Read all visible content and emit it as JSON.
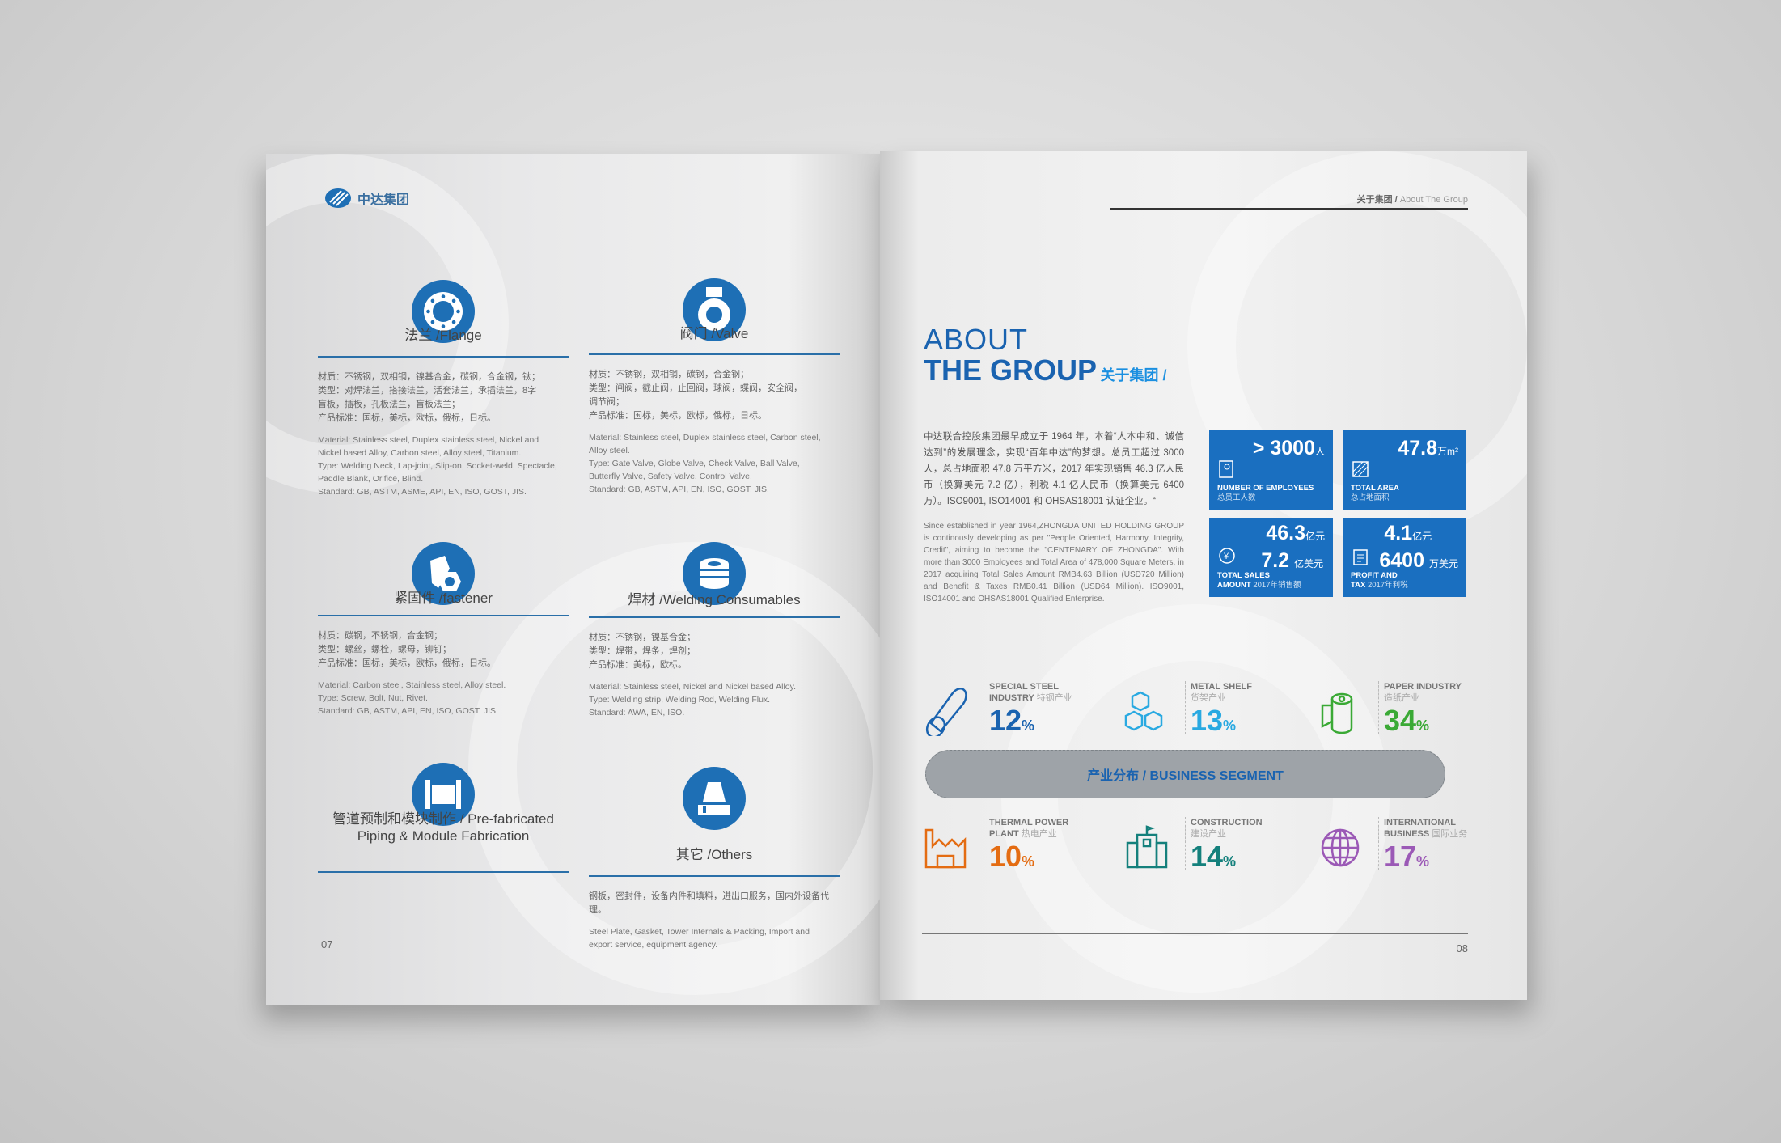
{
  "left_page": {
    "logo_text": "中达集团",
    "page_number": "07",
    "products": [
      {
        "icon": "flange-icon",
        "title": "法兰 /Flange",
        "cn": [
          "材质：不锈钢，双相钢，镍基合金，碳钢，合金钢，钛；",
          "类型：对焊法兰，搭接法兰，活套法兰，承插法兰，8字",
          "盲板，插板，孔板法兰，盲板法兰；",
          "产品标准：国标，美标，欧标，俄标，日标。"
        ],
        "en": [
          "Material: Stainless steel, Duplex stainless steel, Nickel and Nickel based Alloy, Carbon steel, Alloy steel, Titanium.",
          "Type: Welding Neck, Lap-joint, Slip-on, Socket-weld, Spectacle, Paddle Blank, Orifice, Blind.",
          "Standard: GB, ASTM, ASME, API, EN, ISO, GOST, JIS."
        ]
      },
      {
        "icon": "valve-icon",
        "title": "阀门 /Valve",
        "cn": [
          "材质：不锈钢，双相钢，碳钢，合金钢；",
          "类型：闸阀，截止阀，止回阀，球阀，蝶阀，安全阀，",
          "调节阀；",
          "产品标准：国标，美标，欧标，俄标，日标。"
        ],
        "en": [
          "Material: Stainless steel, Duplex stainless steel, Carbon steel, Alloy steel.",
          "Type: Gate Valve, Globe Valve, Check Valve, Ball Valve, Butterfly Valve, Safety Valve, Control Valve.",
          "Standard: GB, ASTM, API, EN, ISO, GOST, JIS."
        ]
      },
      {
        "icon": "fastener-icon",
        "title": "紧固件 /fastener",
        "cn": [
          "材质：碳钢，不锈钢，合金钢；",
          "类型：螺丝，螺栓，螺母，铆钉；",
          "产品标准：国标，美标，欧标，俄标，日标。"
        ],
        "en": [
          "Material: Carbon steel, Stainless steel, Alloy steel.",
          "Type: Screw, Bolt, Nut, Rivet.",
          "Standard: GB, ASTM, API, EN, ISO, GOST, JIS."
        ]
      },
      {
        "icon": "welding-coil-icon",
        "title": "焊材 /Welding Consumables",
        "cn": [
          "材质：不锈钢，镍基合金；",
          "类型：焊带，焊条，焊剂；",
          "产品标准：美标，欧标。"
        ],
        "en": [
          "Material: Stainless steel, Nickel and Nickel based Alloy.",
          "Type: Welding strip, Welding Rod, Welding Flux.",
          "Standard: AWA, EN, ISO."
        ]
      },
      {
        "icon": "pipe-spool-icon",
        "title": "管道预制和模块制作 / Pre-fabricated Piping & Module Fabrication",
        "cn": [],
        "en": []
      },
      {
        "icon": "plate-icon",
        "title": "其它 /Others",
        "cn": [
          "钢板，密封件，设备内件和填料，进出口服务，国内外设备代理。"
        ],
        "en": [
          "Steel Plate, Gasket, Tower Internals & Packing, Import and export service, equipment agency."
        ]
      }
    ]
  },
  "right_page": {
    "header_cn": "关于集团 /",
    "header_en": "About The Group",
    "title_line1": "ABOUT",
    "title_line2": "THE GROUP",
    "title_cn": "关于集团 /",
    "intro_cn": "中达联合控股集团最早成立于 1964 年，本着“人本中和、诚信达到”的发展理念，实现“百年中达”的梦想。总员工超过 3000 人，总占地面积 47.8 万平方米，2017 年实现销售 46.3 亿人民币（换算美元 7.2 亿），利税 4.1 亿人民币（换算美元 6400 万）。ISO9001, ISO14001 和 OHSAS18001 认证企业。“",
    "intro_en": "Since established in year 1964,ZHONGDA UNITED HOLDING GROUP is continously developing as per \"People Oriented, Harmony, Integrity, Credit\", aiming to become the \"CENTENARY OF ZHONGDA\". With more than 3000 Employees and Total Area of 478,000 Square Meters, in 2017 acquiring Total Sales Amount RMB4.63 Billion (USD720 Million) and Benefit & Taxes RMB0.41 Billion (USD64 Million). ISO9001, ISO14001 and OHSAS18001 Qualified Enterprise.",
    "stats": [
      {
        "value": "> 3000",
        "unit": "人",
        "label": "NUMBER OF EMPLOYEES",
        "label_cn": "总员工人数",
        "icon": "employee-id-icon"
      },
      {
        "value": "47.8",
        "unit": "万m²",
        "label": "TOTAL AREA",
        "label_cn": "总占地面积",
        "icon": "area-icon"
      },
      {
        "value": "46.3",
        "unit": "亿元",
        "value2": "7.2",
        "unit2": "亿美元",
        "label": "TOTAL SALES",
        "label2": "AMOUNT",
        "label_cn": "2017年销售额",
        "icon": "yuan-badge-icon"
      },
      {
        "value": "4.1",
        "unit": "亿元",
        "value2": "6400",
        "unit2": "万美元",
        "label": "PROFIT AND",
        "label2": "TAX",
        "label_cn": "2017年利税",
        "icon": "clipboard-icon"
      }
    ],
    "segment_banner": "产业分布 / BUSINESS SEGMENT",
    "segments": [
      {
        "name": "SPECIAL STEEL",
        "name2": "INDUSTRY",
        "name_cn": "特钢产业",
        "value": "12",
        "color": "#1a63b0",
        "icon": "steel-bar-icon"
      },
      {
        "name": "METAL SHELF",
        "name2": "",
        "name_cn": "货架产业",
        "value": "13",
        "color": "#29a9e1",
        "icon": "cubes-icon"
      },
      {
        "name": "PAPER INDUSTRY",
        "name2": "",
        "name_cn": "造纸产业",
        "value": "34",
        "color": "#3aa935",
        "icon": "paper-roll-icon"
      },
      {
        "name": "THERMAL POWER",
        "name2": "PLANT",
        "name_cn": "热电产业",
        "value": "10",
        "color": "#e46c12",
        "icon": "factory-icon"
      },
      {
        "name": "CONSTRUCTION",
        "name2": "",
        "name_cn": "建设产业",
        "value": "14",
        "color": "#14807c",
        "icon": "building-icon"
      },
      {
        "name": "INTERNATIONAL",
        "name2": "BUSINESS",
        "name_cn": "国际业务",
        "value": "17",
        "color": "#9b59b6",
        "icon": "globe-icon"
      }
    ],
    "pct_sign": "%",
    "page_number": "08"
  }
}
